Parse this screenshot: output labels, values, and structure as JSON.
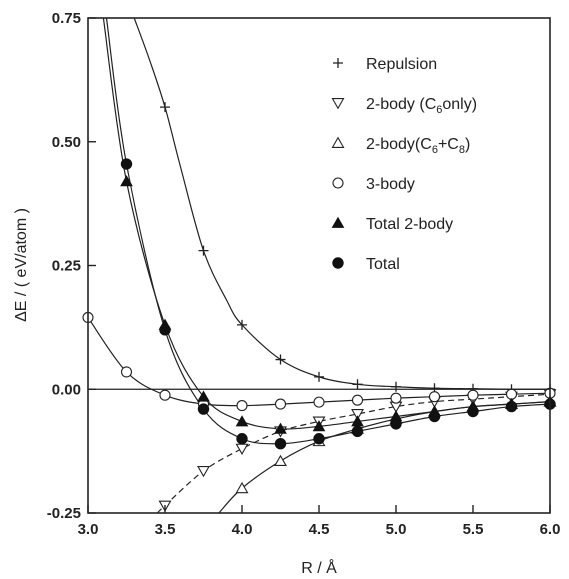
{
  "chart_data": {
    "type": "line",
    "title": "",
    "xlabel": "R / Å",
    "ylabel": "ΔE / ( eV/atom )",
    "xlim": [
      3.0,
      6.0
    ],
    "ylim": [
      -0.25,
      0.75
    ],
    "xticks": [
      "3.0",
      "3.5",
      "4.0",
      "4.5",
      "5.0",
      "5.5",
      "6.0"
    ],
    "yticks": [
      "-0.25",
      "0.00",
      "0.25",
      "0.50",
      "0.75"
    ],
    "grid": false,
    "legend_position": "top-right",
    "zero_line": true,
    "series": [
      {
        "name": "Repulsion",
        "marker": "plus",
        "line": "solid",
        "x": [
          3.5,
          3.75,
          4.0,
          4.25,
          4.5,
          4.75,
          5.0,
          5.25,
          5.5,
          5.75,
          6.0
        ],
        "y": [
          0.57,
          0.28,
          0.13,
          0.06,
          0.025,
          0.01,
          0.005,
          0.002,
          0.001,
          0.0,
          0.0
        ],
        "curve_x": [
          3.3,
          3.4,
          3.5,
          3.6,
          3.75,
          3.9,
          4.0,
          4.25,
          4.5,
          4.75,
          5.0,
          5.25,
          5.5,
          5.75,
          6.0
        ],
        "curve_y": [
          0.75,
          0.665,
          0.57,
          0.45,
          0.28,
          0.18,
          0.13,
          0.06,
          0.025,
          0.01,
          0.005,
          0.002,
          0.001,
          0.0,
          0.0
        ]
      },
      {
        "name": "2-body (C6only)",
        "name_parts": [
          "2-body (C",
          "6",
          "only)"
        ],
        "marker": "triangle-down-open",
        "line": "dashed",
        "x": [
          3.5,
          3.75,
          4.0,
          4.25,
          4.5,
          4.75,
          5.0,
          5.25,
          5.5,
          5.75,
          6.0
        ],
        "y": [
          -0.235,
          -0.165,
          -0.12,
          -0.085,
          -0.065,
          -0.05,
          -0.035,
          -0.025,
          -0.02,
          -0.015,
          -0.01
        ],
        "curve_x": [
          3.45,
          3.5,
          3.75,
          4.0,
          4.25,
          4.5,
          4.75,
          5.0,
          5.25,
          5.5,
          5.75,
          6.0
        ],
        "curve_y": [
          -0.25,
          -0.235,
          -0.165,
          -0.12,
          -0.085,
          -0.065,
          -0.05,
          -0.035,
          -0.025,
          -0.02,
          -0.015,
          -0.01
        ]
      },
      {
        "name": "2-body(C6+C8)",
        "name_parts": [
          "2-body(C",
          "6",
          "+C",
          "8",
          ")"
        ],
        "marker": "triangle-up-open",
        "line": "solid",
        "x": [
          4.0,
          4.25,
          4.5,
          4.75,
          5.0,
          5.25,
          5.5,
          5.75,
          6.0
        ],
        "y": [
          -0.2,
          -0.145,
          -0.105,
          -0.08,
          -0.06,
          -0.045,
          -0.035,
          -0.03,
          -0.025
        ],
        "curve_x": [
          3.85,
          4.0,
          4.25,
          4.5,
          4.75,
          5.0,
          5.25,
          5.5,
          5.75,
          6.0
        ],
        "curve_y": [
          -0.25,
          -0.2,
          -0.145,
          -0.105,
          -0.08,
          -0.06,
          -0.045,
          -0.035,
          -0.03,
          -0.025
        ]
      },
      {
        "name": "3-body",
        "marker": "circle-open",
        "line": "solid",
        "x": [
          3.0,
          3.25,
          3.5,
          3.75,
          4.0,
          4.25,
          4.5,
          4.75,
          5.0,
          5.25,
          5.5,
          5.75,
          6.0
        ],
        "y": [
          0.145,
          0.035,
          -0.012,
          -0.03,
          -0.033,
          -0.03,
          -0.026,
          -0.022,
          -0.018,
          -0.015,
          -0.012,
          -0.01,
          -0.008
        ],
        "curve_x": [
          3.0,
          3.25,
          3.5,
          3.75,
          4.0,
          4.25,
          4.5,
          4.75,
          5.0,
          5.25,
          5.5,
          5.75,
          6.0
        ],
        "curve_y": [
          0.145,
          0.035,
          -0.012,
          -0.03,
          -0.033,
          -0.03,
          -0.026,
          -0.022,
          -0.018,
          -0.015,
          -0.012,
          -0.01,
          -0.008
        ]
      },
      {
        "name": "Total 2-body",
        "marker": "triangle-up-filled",
        "line": "solid",
        "x": [
          3.25,
          3.5,
          3.75,
          4.0,
          4.25,
          4.5,
          4.75,
          5.0,
          5.25,
          5.5,
          5.75,
          6.0
        ],
        "y": [
          0.42,
          0.13,
          -0.015,
          -0.065,
          -0.08,
          -0.075,
          -0.065,
          -0.055,
          -0.045,
          -0.035,
          -0.03,
          -0.025
        ],
        "curve_x": [
          3.1,
          3.25,
          3.5,
          3.75,
          4.0,
          4.25,
          4.5,
          4.75,
          5.0,
          5.25,
          5.5,
          5.75,
          6.0
        ],
        "curve_y": [
          0.75,
          0.42,
          0.13,
          -0.015,
          -0.065,
          -0.08,
          -0.075,
          -0.065,
          -0.055,
          -0.045,
          -0.035,
          -0.03,
          -0.025
        ]
      },
      {
        "name": "Total",
        "marker": "circle-filled",
        "line": "solid",
        "x": [
          3.25,
          3.5,
          3.75,
          4.0,
          4.25,
          4.5,
          4.75,
          5.0,
          5.25,
          5.5,
          5.75,
          6.0
        ],
        "y": [
          0.455,
          0.12,
          -0.04,
          -0.1,
          -0.11,
          -0.1,
          -0.085,
          -0.07,
          -0.055,
          -0.045,
          -0.035,
          -0.03
        ],
        "curve_x": [
          3.12,
          3.25,
          3.5,
          3.75,
          4.0,
          4.25,
          4.5,
          4.75,
          5.0,
          5.25,
          5.5,
          5.75,
          6.0
        ],
        "curve_y": [
          0.75,
          0.455,
          0.12,
          -0.04,
          -0.1,
          -0.11,
          -0.1,
          -0.085,
          -0.07,
          -0.055,
          -0.045,
          -0.035,
          -0.03
        ]
      }
    ]
  }
}
